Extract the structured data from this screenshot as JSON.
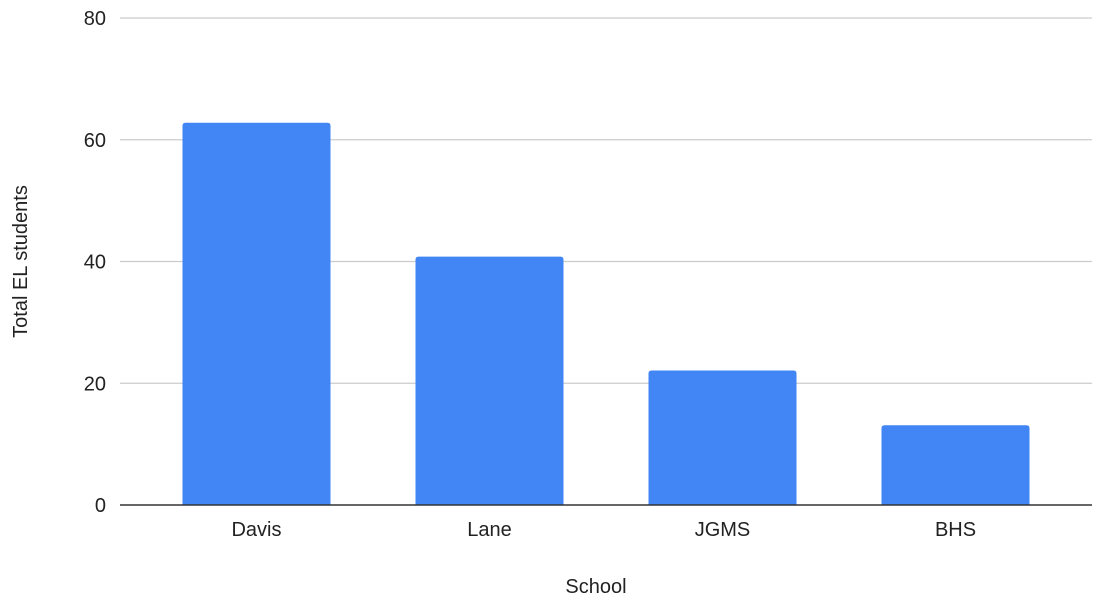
{
  "chart_data": {
    "type": "bar",
    "title": "",
    "xlabel": "School",
    "ylabel": "Total EL students",
    "categories": [
      "Davis",
      "Lane",
      "JGMS",
      "BHS"
    ],
    "values": [
      62.8,
      40.8,
      22.1,
      13.1
    ],
    "ylim": [
      0,
      80
    ],
    "yticks": [
      0,
      20,
      40,
      60,
      80
    ],
    "grid": true,
    "legend": "none",
    "bar_color": "#4285f4",
    "grid_color": "#cccccc",
    "axis_color": "#333333"
  }
}
